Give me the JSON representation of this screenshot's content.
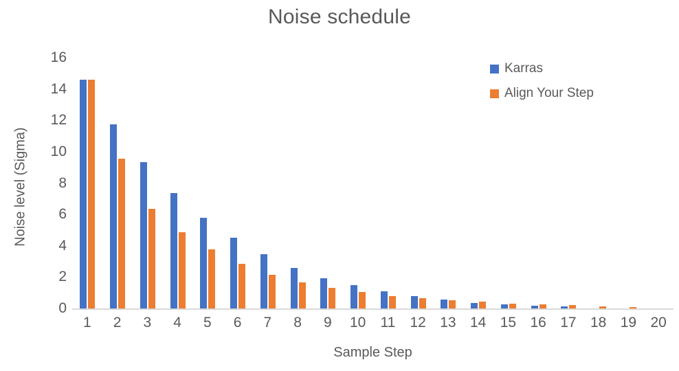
{
  "chart_data": {
    "type": "bar",
    "title": "Noise schedule",
    "xlabel": "Sample Step",
    "ylabel": "Noise level (Sigma)",
    "categories": [
      "1",
      "2",
      "3",
      "4",
      "5",
      "6",
      "7",
      "8",
      "9",
      "10",
      "11",
      "12",
      "13",
      "14",
      "15",
      "16",
      "17",
      "18",
      "19",
      "20"
    ],
    "series": [
      {
        "name": "Karras",
        "color": "#4472C4",
        "values": [
          14.6,
          11.75,
          9.35,
          7.35,
          5.8,
          4.5,
          3.45,
          2.6,
          1.95,
          1.5,
          1.1,
          0.8,
          0.57,
          0.36,
          0.25,
          0.17,
          0.12,
          0.02,
          0.01,
          0
        ]
      },
      {
        "name": "Align Your Step",
        "color": "#ED7D31",
        "values": [
          14.6,
          9.55,
          6.35,
          4.85,
          3.75,
          2.85,
          2.15,
          1.65,
          1.3,
          1.05,
          0.8,
          0.65,
          0.51,
          0.44,
          0.32,
          0.25,
          0.21,
          0.13,
          0.08,
          0
        ]
      }
    ],
    "ylim": [
      0,
      16
    ],
    "y_ticks": [
      0,
      2,
      4,
      6,
      8,
      10,
      12,
      14,
      16
    ],
    "grid": false,
    "legend_position": "top-right",
    "colors": {
      "axis_line": "#D9D9D9",
      "text": "#595959",
      "background": "#FFFFFF"
    }
  }
}
